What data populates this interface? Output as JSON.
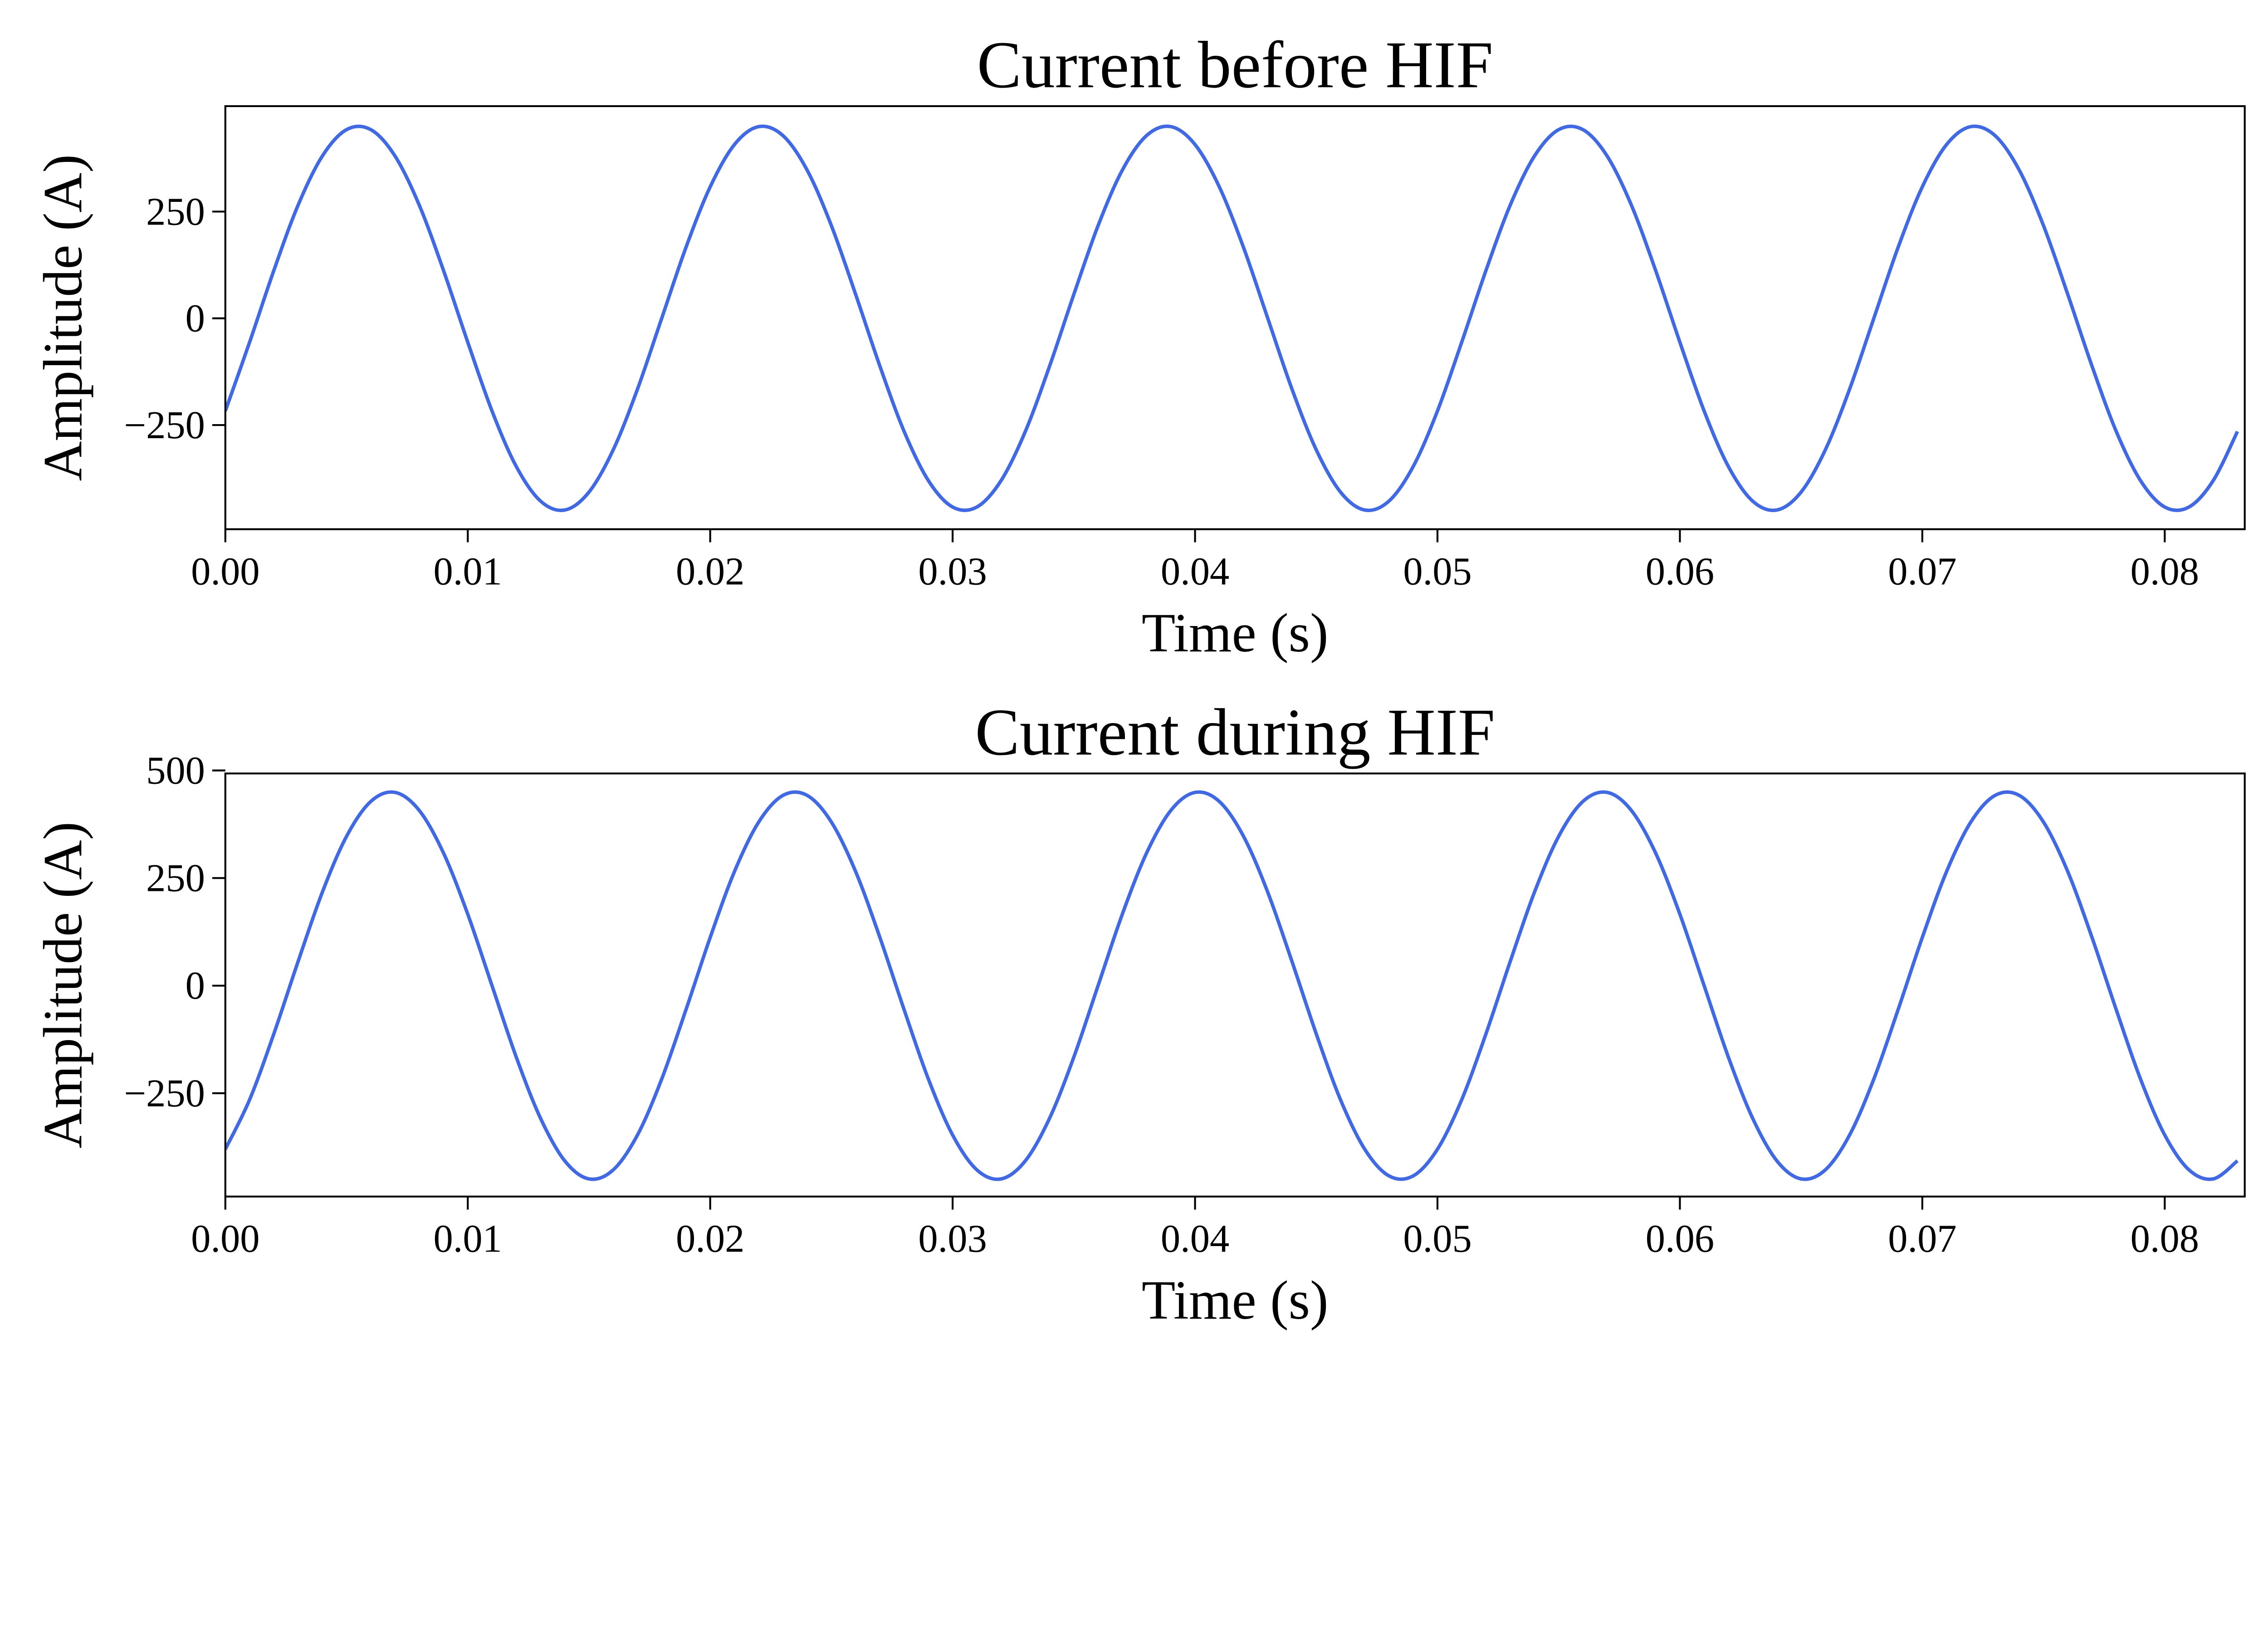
{
  "chart_data": [
    {
      "type": "line",
      "title": "Current before HIF",
      "xlabel": "Time (s)",
      "ylabel": "Amplitude (A)",
      "xlim": [
        0,
        0.0833
      ],
      "ylim": [
        -494,
        497
      ],
      "xticks": [
        0.0,
        0.01,
        0.02,
        0.03,
        0.04,
        0.05,
        0.06,
        0.07,
        0.08
      ],
      "xtick_labels": [
        "0.00",
        "0.01",
        "0.02",
        "0.03",
        "0.04",
        "0.05",
        "0.06",
        "0.07",
        "0.08"
      ],
      "yticks": [
        -250,
        0,
        250
      ],
      "ytick_labels": [
        "−250",
        "0",
        "250"
      ],
      "grid": false,
      "color": "#4169e1",
      "x": [
        0,
        0.001,
        0.002,
        0.003,
        0.004,
        0.005,
        0.006,
        0.007,
        0.008,
        0.009,
        0.01,
        0.011,
        0.012,
        0.013,
        0.014,
        0.015,
        0.016,
        0.017,
        0.018,
        0.019,
        0.02,
        0.021,
        0.022,
        0.023,
        0.024,
        0.025,
        0.026,
        0.027,
        0.028,
        0.029,
        0.03,
        0.031,
        0.032,
        0.033,
        0.034,
        0.035,
        0.036,
        0.037,
        0.038,
        0.039,
        0.04,
        0.041,
        0.042,
        0.043,
        0.044,
        0.045,
        0.046,
        0.047,
        0.048,
        0.049,
        0.05,
        0.051,
        0.052,
        0.053,
        0.054,
        0.055,
        0.056,
        0.057,
        0.058,
        0.059,
        0.06,
        0.061,
        0.062,
        0.063,
        0.064,
        0.065,
        0.066,
        0.067,
        0.068,
        0.069,
        0.07,
        0.071,
        0.072,
        0.073,
        0.074,
        0.075,
        0.076,
        0.077,
        0.078,
        0.079,
        0.08,
        0.081,
        0.082,
        0.083
      ],
      "y": [
        -217,
        -56,
        112,
        265,
        380,
        442,
        442,
        380,
        265,
        112,
        -56,
        -217,
        -347,
        -428,
        -449,
        -407,
        -308,
        -166,
        0,
        166,
        308,
        407,
        449,
        428,
        347,
        217,
        56,
        -112,
        -265,
        -380,
        -442,
        -442,
        -380,
        -265,
        -112,
        56,
        217,
        347,
        428,
        449,
        407,
        308,
        166,
        0,
        -166,
        -308,
        -407,
        -449,
        -428,
        -347,
        -217,
        -56,
        112,
        265,
        380,
        442,
        442,
        380,
        265,
        112,
        -56,
        -217,
        -347,
        -428,
        -449,
        -407,
        -308,
        -166,
        0,
        166,
        308,
        407,
        449,
        428,
        347,
        217,
        56,
        -112,
        -265,
        -380,
        -442,
        -442,
        -380,
        -265
      ]
    },
    {
      "type": "line",
      "title": "Current during HIF",
      "xlabel": "Time (s)",
      "ylabel": "Amplitude (A)",
      "xlim": [
        0,
        0.0833
      ],
      "ylim": [
        -490,
        493
      ],
      "xticks": [
        0.0,
        0.01,
        0.02,
        0.03,
        0.04,
        0.05,
        0.06,
        0.07,
        0.08
      ],
      "xtick_labels": [
        "0.00",
        "0.01",
        "0.02",
        "0.03",
        "0.04",
        "0.05",
        "0.06",
        "0.07",
        "0.08"
      ],
      "yticks": [
        -250,
        0,
        250,
        500
      ],
      "ytick_labels": [
        "−250",
        "0",
        "250",
        "500"
      ],
      "grid": false,
      "color": "#4169e1",
      "x": [
        0,
        0.001,
        0.002,
        0.003,
        0.004,
        0.005,
        0.006,
        0.007,
        0.008,
        0.009,
        0.01,
        0.011,
        0.012,
        0.013,
        0.014,
        0.015,
        0.016,
        0.017,
        0.018,
        0.019,
        0.02,
        0.021,
        0.022,
        0.023,
        0.024,
        0.025,
        0.026,
        0.027,
        0.028,
        0.029,
        0.03,
        0.031,
        0.032,
        0.033,
        0.034,
        0.035,
        0.036,
        0.037,
        0.038,
        0.039,
        0.04,
        0.041,
        0.042,
        0.043,
        0.044,
        0.045,
        0.046,
        0.047,
        0.048,
        0.049,
        0.05,
        0.051,
        0.052,
        0.053,
        0.054,
        0.055,
        0.056,
        0.057,
        0.058,
        0.059,
        0.06,
        0.061,
        0.062,
        0.063,
        0.064,
        0.065,
        0.066,
        0.067,
        0.068,
        0.069,
        0.07,
        0.071,
        0.072,
        0.073,
        0.074,
        0.075,
        0.076,
        0.077,
        0.078,
        0.079,
        0.08,
        0.081,
        0.082,
        0.083
      ],
      "y": [
        -380,
        -265,
        -112,
        56,
        217,
        347,
        428,
        449,
        407,
        308,
        166,
        0,
        -166,
        -308,
        -407,
        -449,
        -428,
        -347,
        -217,
        -56,
        112,
        265,
        380,
        442,
        442,
        380,
        265,
        112,
        -56,
        -217,
        -347,
        -428,
        -449,
        -407,
        -308,
        -166,
        0,
        166,
        308,
        407,
        449,
        428,
        347,
        217,
        56,
        -112,
        -265,
        -380,
        -442,
        -442,
        -380,
        -265,
        -112,
        56,
        217,
        347,
        428,
        449,
        407,
        308,
        166,
        0,
        -166,
        -308,
        -407,
        -449,
        -428,
        -347,
        -217,
        -56,
        112,
        265,
        380,
        442,
        442,
        380,
        265,
        112,
        -56,
        -217,
        -347,
        -428,
        -449,
        -407
      ]
    }
  ]
}
